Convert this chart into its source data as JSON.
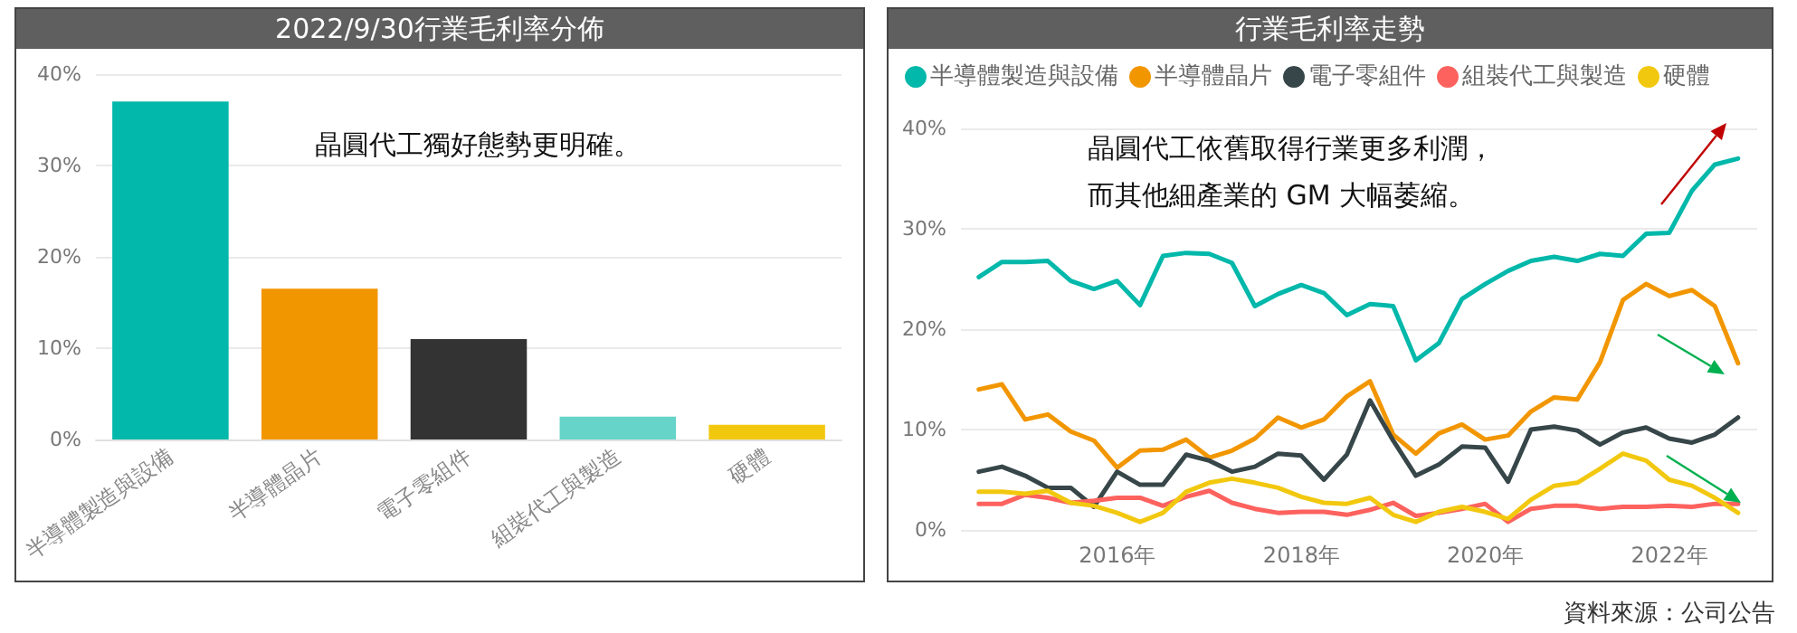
{
  "chart_data": [
    {
      "type": "bar",
      "title": "2022/9/30行業毛利率分佈",
      "categories": [
        "半導體製造與設備",
        "半導體晶片",
        "電子零組件",
        "組裝代工與製造",
        "硬體"
      ],
      "values": [
        37.0,
        16.5,
        11.0,
        2.5,
        1.6
      ],
      "colors": [
        "#01b8aa",
        "#f29600",
        "#333333",
        "#66d4c9",
        "#f2c80f"
      ],
      "ylim": [
        0,
        40
      ],
      "yticks": [
        {
          "value": 0,
          "label": "0%"
        },
        {
          "value": 10,
          "label": "10%"
        },
        {
          "value": 20,
          "label": "20%"
        },
        {
          "value": 30,
          "label": "30%"
        },
        {
          "value": 40,
          "label": "40%"
        }
      ],
      "grid": "y",
      "annotations": [
        "晶圓代工獨好態勢更明確。"
      ]
    },
    {
      "type": "line",
      "title": "行業毛利率走勢",
      "x": [
        "2014-06-30",
        "2014-09-30",
        "2014-12-31",
        "2015-03-31",
        "2015-06-30",
        "2015-09-30",
        "2015-12-31",
        "2016-03-31",
        "2016-06-30",
        "2016-09-30",
        "2016-12-31",
        "2017-03-31",
        "2017-06-30",
        "2017-09-30",
        "2017-12-31",
        "2018-03-31",
        "2018-06-30",
        "2018-09-30",
        "2018-12-31",
        "2019-03-31",
        "2019-06-30",
        "2019-09-30",
        "2019-12-31",
        "2020-03-31",
        "2020-06-30",
        "2020-09-30",
        "2020-12-31",
        "2021-03-31",
        "2021-06-30",
        "2021-09-30",
        "2021-12-31",
        "2022-03-31",
        "2022-06-30",
        "2022-09-30"
      ],
      "series": [
        {
          "name": "半導體製造與設備",
          "color": "#01b8aa",
          "values": [
            25.2,
            26.7,
            26.7,
            26.8,
            24.8,
            24.0,
            24.8,
            22.4,
            27.3,
            27.6,
            27.5,
            26.6,
            22.3,
            23.5,
            24.4,
            23.6,
            21.4,
            22.5,
            22.3,
            16.9,
            18.6,
            23.0,
            24.5,
            25.8,
            26.8,
            27.2,
            26.8,
            27.5,
            27.3,
            29.5,
            29.6,
            33.8,
            36.4,
            37.0
          ]
        },
        {
          "name": "半導體晶片",
          "color": "#f29600",
          "values": [
            14.0,
            14.5,
            11.0,
            11.5,
            9.8,
            8.9,
            6.2,
            7.9,
            8.0,
            9.0,
            7.2,
            7.9,
            9.1,
            11.2,
            10.2,
            11.0,
            13.3,
            14.8,
            9.5,
            7.6,
            9.6,
            10.5,
            9.0,
            9.4,
            11.8,
            13.2,
            13.0,
            16.7,
            22.9,
            24.5,
            23.3,
            23.9,
            22.3,
            16.6
          ]
        },
        {
          "name": "電子零組件",
          "color": "#374649",
          "values": [
            5.8,
            6.3,
            5.4,
            4.2,
            4.2,
            2.3,
            5.8,
            4.5,
            4.5,
            7.5,
            6.9,
            5.8,
            6.3,
            7.6,
            7.4,
            5.0,
            7.5,
            12.9,
            8.9,
            5.4,
            6.5,
            8.3,
            8.2,
            4.8,
            10.0,
            10.3,
            9.9,
            8.5,
            9.7,
            10.2,
            9.1,
            8.7,
            9.5,
            11.2
          ]
        },
        {
          "name": "組裝代工與製造",
          "color": "#fd625e",
          "values": [
            2.6,
            2.6,
            3.5,
            3.2,
            2.7,
            2.9,
            3.2,
            3.2,
            2.4,
            3.3,
            3.9,
            2.7,
            2.1,
            1.7,
            1.8,
            1.8,
            1.5,
            2.0,
            2.7,
            1.4,
            1.7,
            2.1,
            2.6,
            0.8,
            2.1,
            2.4,
            2.4,
            2.1,
            2.3,
            2.3,
            2.4,
            2.3,
            2.6,
            2.6
          ]
        },
        {
          "name": "硬體",
          "color": "#f2c80f",
          "values": [
            3.8,
            3.8,
            3.6,
            3.9,
            2.7,
            2.4,
            1.7,
            0.8,
            1.7,
            3.8,
            4.7,
            5.1,
            4.7,
            4.2,
            3.3,
            2.7,
            2.6,
            3.2,
            1.5,
            0.8,
            1.8,
            2.3,
            1.8,
            1.1,
            3.0,
            4.4,
            4.7,
            6.1,
            7.6,
            6.9,
            5.0,
            4.4,
            3.2,
            1.7
          ]
        }
      ],
      "xlim": [
        "2014-04-20",
        "2022-12-15"
      ],
      "xticks": [
        {
          "value": "2016-01-01",
          "label": "2016年"
        },
        {
          "value": "2018-01-01",
          "label": "2018年"
        },
        {
          "value": "2020-01-01",
          "label": "2020年"
        },
        {
          "value": "2022-01-01",
          "label": "2022年"
        }
      ],
      "ylim": [
        0,
        40
      ],
      "yticks": [
        {
          "value": 0,
          "label": "0%"
        },
        {
          "value": 10,
          "label": "10%"
        },
        {
          "value": 20,
          "label": "20%"
        },
        {
          "value": 30,
          "label": "30%"
        },
        {
          "value": 40,
          "label": "40%"
        }
      ],
      "grid": "y",
      "legend": "top",
      "marker": "none",
      "line_style": "solid",
      "annotations": [
        "晶圓代工依舊取得行業更多利潤，而其他細產業的 GM 大幅萎縮。",
        "資料來源：公司公告"
      ]
    }
  ]
}
